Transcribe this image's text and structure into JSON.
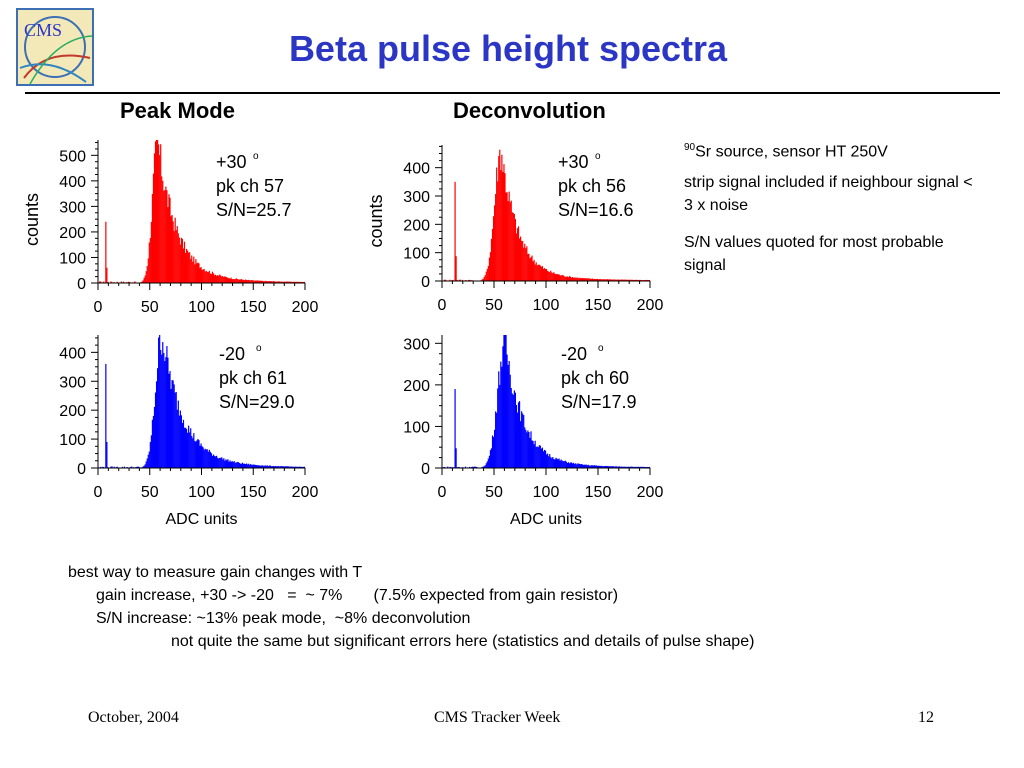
{
  "slide": {
    "title": "Beta pulse height spectra",
    "col_left": "Peak Mode",
    "col_right": "Deconvolution",
    "notes": [
      {
        "sup": "90",
        "text": "Sr source, sensor HT 250V"
      },
      {
        "sup": "",
        "text": "strip signal included if neighbour signal < 3 x noise"
      },
      {
        "sup": "",
        "text": "S/N values quoted for most probable signal"
      }
    ],
    "bottom": [
      "best way to measure gain changes with T",
      "gain increase, +30 -> -20   =  ~ 7%       (7.5% expected from gain resistor)",
      "S/N increase: ~13% peak mode,  ~8% deconvolution",
      "not quite the same but significant errors here (statistics and details of pulse shape)"
    ],
    "footer_left": "October, 2004",
    "footer_center": "CMS Tracker Week",
    "footer_right": "12",
    "logo_text": "CMS"
  },
  "chart_data": [
    {
      "type": "bar",
      "name": "Peak Mode +30",
      "color": "#ff0000",
      "ylabel": "counts",
      "xlabel": "",
      "xlim": [
        0,
        200
      ],
      "ylim": [
        0,
        560
      ],
      "xticks": [
        0,
        50,
        100,
        150,
        200
      ],
      "yticks": [
        0,
        100,
        200,
        300,
        400,
        500
      ],
      "annotation": {
        "temp": "+30",
        "deg": "o",
        "line2": "pk ch 57",
        "line3": "S/N=25.7"
      },
      "pedestal": {
        "x": 7,
        "height": 240
      },
      "peak": {
        "mpv": 57,
        "height": 555,
        "sigma_left": 5,
        "decay": 18,
        "start": 37
      }
    },
    {
      "type": "bar",
      "name": "Deconvolution +30",
      "color": "#ff0000",
      "ylabel": "counts",
      "xlabel": "",
      "xlim": [
        0,
        200
      ],
      "ylim": [
        0,
        480
      ],
      "xticks": [
        0,
        50,
        100,
        150,
        200
      ],
      "yticks": [
        0,
        100,
        200,
        300,
        400
      ],
      "annotation": {
        "temp": "+30",
        "deg": "o",
        "line2": "pk ch 56",
        "line3": "S/N=16.6"
      },
      "pedestal": {
        "x": 12,
        "height": 350
      },
      "peak": {
        "mpv": 56,
        "height": 470,
        "sigma_left": 6,
        "decay": 16,
        "start": 30
      }
    },
    {
      "type": "bar",
      "name": "Peak Mode -20",
      "color": "#0000ff",
      "ylabel": "",
      "xlabel": "ADC units",
      "xlim": [
        0,
        200
      ],
      "ylim": [
        0,
        460
      ],
      "xticks": [
        0,
        50,
        100,
        150,
        200
      ],
      "yticks": [
        0,
        100,
        200,
        300,
        400
      ],
      "annotation": {
        "temp": "-20",
        "deg": "o",
        "line2": "pk ch 61",
        "line3": "S/N=29.0"
      },
      "pedestal": {
        "x": 7,
        "height": 360
      },
      "peak": {
        "mpv": 61,
        "height": 470,
        "sigma_left": 6,
        "decay": 20,
        "start": 40
      }
    },
    {
      "type": "bar",
      "name": "Deconvolution -20",
      "color": "#0000ff",
      "ylabel": "",
      "xlabel": "ADC units",
      "xlim": [
        0,
        200
      ],
      "ylim": [
        0,
        320
      ],
      "xticks": [
        0,
        50,
        100,
        150,
        200
      ],
      "yticks": [
        0,
        100,
        200,
        300
      ],
      "annotation": {
        "temp": "-20",
        "deg": "o",
        "line2": "pk ch 60",
        "line3": "S/N=17.9"
      },
      "pedestal": {
        "x": 12,
        "height": 190
      },
      "peak": {
        "mpv": 60,
        "height": 310,
        "sigma_left": 7,
        "decay": 17,
        "start": 34
      }
    }
  ]
}
